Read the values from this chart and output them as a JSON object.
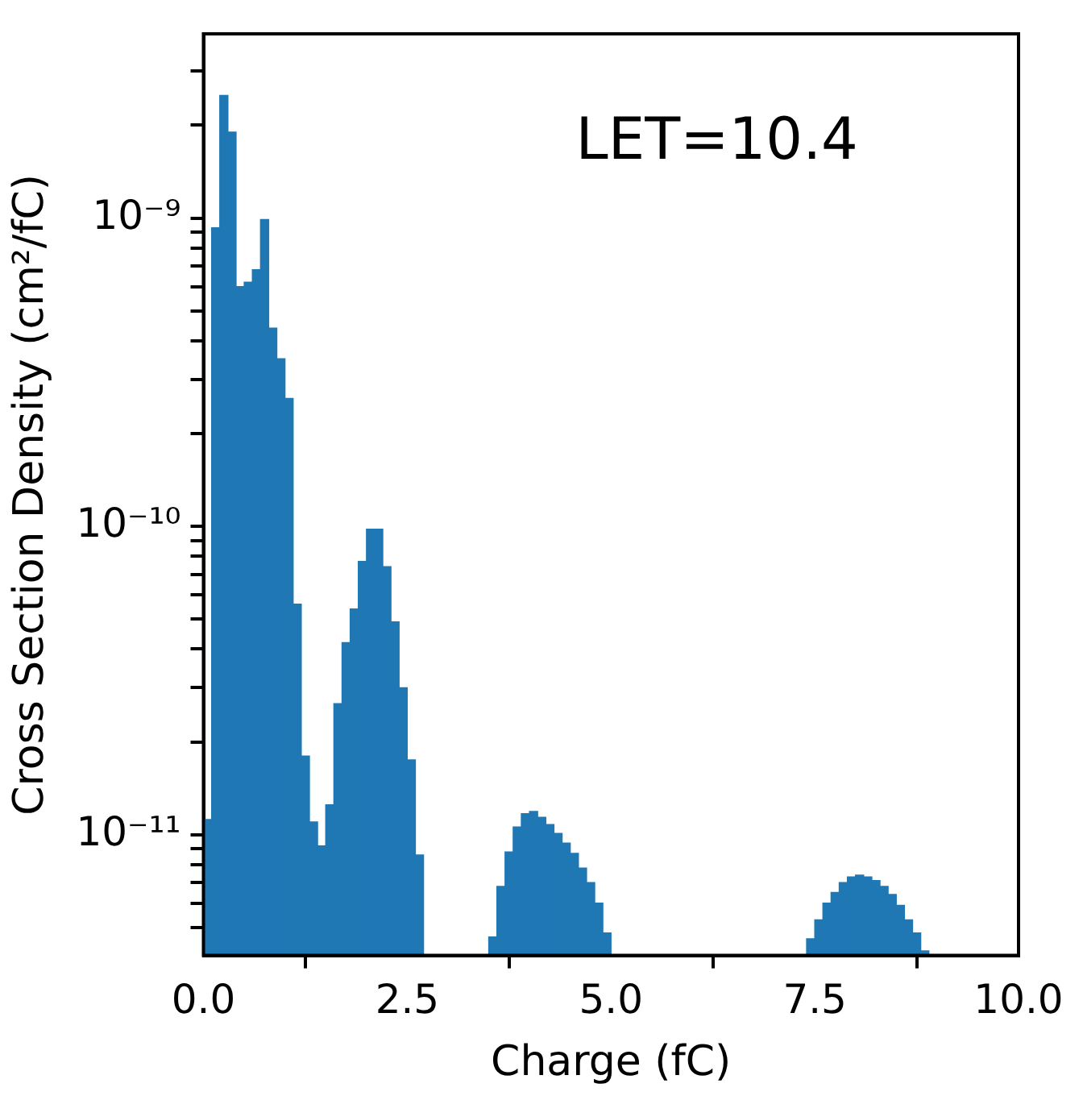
{
  "chart_data": {
    "type": "histogram",
    "xlabel": "Charge (fC)",
    "ylabel": "Cross Section Density (cm²/fC)",
    "annotations": [
      "LET=10.4"
    ],
    "log": "y",
    "grid": false,
    "color": "#1f77b4",
    "bins": [
      0,
      0.1,
      0.2,
      0.3,
      0.4,
      0.5,
      0.6,
      0.7,
      0.8,
      0.9,
      1.0,
      1.1,
      1.2,
      1.3,
      1.4,
      1.5,
      1.6,
      1.7,
      1.8,
      1.9,
      2.0,
      2.1,
      2.2,
      2.3,
      2.4,
      2.5,
      2.6,
      2.7,
      2.8,
      2.9,
      3.0,
      3.1,
      3.2,
      3.3,
      3.4,
      3.5,
      3.6,
      3.7,
      3.8,
      3.9,
      4.0,
      4.1,
      4.2,
      4.3,
      4.4,
      4.5,
      4.6,
      4.7,
      4.8,
      4.9,
      5.0,
      5.1,
      5.2,
      5.3,
      5.4,
      5.5,
      5.6,
      5.7,
      5.8,
      5.9,
      6.0,
      6.1,
      6.2,
      6.3,
      6.4,
      6.5,
      6.6,
      6.7,
      6.8,
      6.9,
      7.0,
      7.1,
      7.2,
      7.3,
      7.4,
      7.5,
      7.6,
      7.7,
      7.8,
      7.9,
      8.0,
      8.1,
      8.2,
      8.3,
      8.4,
      8.5,
      8.6,
      8.7,
      8.8,
      8.9
    ],
    "values": [
      1.12e-11,
      9.3e-10,
      2.5e-09,
      1.9e-09,
      6e-10,
      6.2e-10,
      6.8e-10,
      9.9e-10,
      4.4e-10,
      3.5e-10,
      2.6e-10,
      5.6e-11,
      1.8e-11,
      1.1e-11,
      9.2e-12,
      1.25e-11,
      2.66e-11,
      4.2e-11,
      5.4e-11,
      7.7e-11,
      9.8e-11,
      9.8e-11,
      7.4e-11,
      4.9e-11,
      3e-11,
      1.75e-11,
      8.6e-12,
      null,
      null,
      null,
      null,
      null,
      null,
      null,
      null,
      4.66e-12,
      6.8e-12,
      8.8e-12,
      1.06e-11,
      1.17e-11,
      1.19e-11,
      1.14e-11,
      1.08e-11,
      1.01e-11,
      9.4e-12,
      8.7e-12,
      7.8e-12,
      7e-12,
      6e-12,
      4.8e-12,
      null,
      null,
      null,
      null,
      null,
      null,
      null,
      null,
      null,
      null,
      null,
      null,
      null,
      null,
      null,
      null,
      null,
      null,
      null,
      null,
      null,
      null,
      null,
      null,
      4.6e-12,
      5.3e-12,
      6e-12,
      6.5e-12,
      7e-12,
      7.3e-12,
      7.4e-12,
      7.3e-12,
      7.1e-12,
      6.8e-12,
      6.4e-12,
      5.9e-12,
      5.3e-12,
      4.8e-12,
      4.2e-12
    ],
    "xlim": [
      0,
      10
    ],
    "xticks": [
      {
        "value": 0,
        "label": "0.0"
      },
      {
        "value": 2.5,
        "label": "2.5"
      },
      {
        "value": 5,
        "label": "5.0"
      },
      {
        "value": 7.5,
        "label": "7.5"
      },
      {
        "value": 10,
        "label": "10.0"
      }
    ],
    "ylim": [
      4.06e-12,
      3.96e-09
    ],
    "yticks": [
      {
        "value": 5e-12,
        "label": null
      },
      {
        "value": 6e-12,
        "label": null
      },
      {
        "value": 7e-12,
        "label": null
      },
      {
        "value": 8e-12,
        "label": null
      },
      {
        "value": 9e-12,
        "label": null
      },
      {
        "value": 1e-11,
        "label": "10⁻¹¹"
      },
      {
        "value": 2e-11,
        "label": null
      },
      {
        "value": 3e-11,
        "label": null
      },
      {
        "value": 4e-11,
        "label": null
      },
      {
        "value": 5e-11,
        "label": null
      },
      {
        "value": 6e-11,
        "label": null
      },
      {
        "value": 7e-11,
        "label": null
      },
      {
        "value": 8e-11,
        "label": null
      },
      {
        "value": 9e-11,
        "label": null
      },
      {
        "value": 1e-10,
        "label": "10⁻¹⁰"
      },
      {
        "value": 2e-10,
        "label": null
      },
      {
        "value": 3e-10,
        "label": null
      },
      {
        "value": 4e-10,
        "label": null
      },
      {
        "value": 5e-10,
        "label": null
      },
      {
        "value": 6e-10,
        "label": null
      },
      {
        "value": 7e-10,
        "label": null
      },
      {
        "value": 8e-10,
        "label": null
      },
      {
        "value": 9e-10,
        "label": null
      },
      {
        "value": 1e-09,
        "label": "10⁻⁹"
      },
      {
        "value": 2e-09,
        "label": null
      },
      {
        "value": 3e-09,
        "label": null
      }
    ]
  }
}
